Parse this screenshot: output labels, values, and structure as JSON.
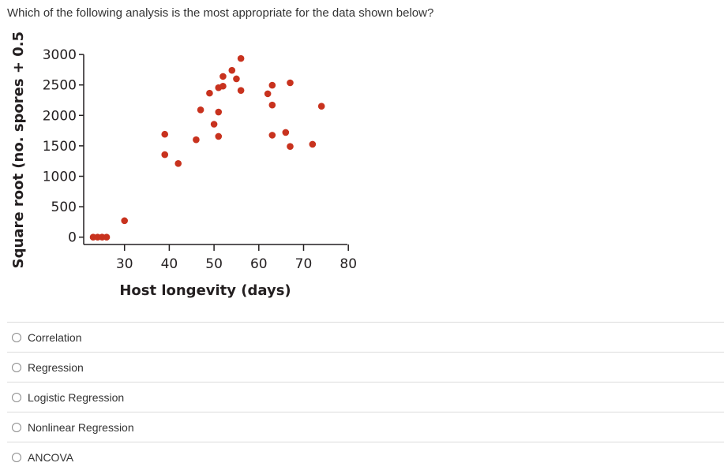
{
  "question": {
    "text": "Which of the following analysis is the most appropriate for the data shown below?"
  },
  "chart_data": {
    "type": "scatter",
    "title": "",
    "xlabel": "Host longevity (days)",
    "ylabel": "Square root (no. spores + 0.5)",
    "xlim": [
      21,
      80
    ],
    "ylim": [
      -100,
      3000
    ],
    "x_ticks": [
      30,
      40,
      50,
      60,
      70,
      80
    ],
    "x_tick_labels": [
      "30",
      "40",
      "50",
      "60",
      "70",
      "80"
    ],
    "y_ticks": [
      0,
      500,
      1000,
      1500,
      2000,
      2500,
      3000
    ],
    "y_tick_labels": [
      "0",
      "500",
      "1000",
      "1500",
      "2000",
      "2500",
      "3000"
    ],
    "grid": false,
    "legend": null,
    "marker_color": "#c8321e",
    "points": [
      {
        "x": 23,
        "y": 0
      },
      {
        "x": 24,
        "y": 0
      },
      {
        "x": 25,
        "y": 0
      },
      {
        "x": 26,
        "y": 0
      },
      {
        "x": 30,
        "y": 270
      },
      {
        "x": 39,
        "y": 1690
      },
      {
        "x": 39,
        "y": 1355
      },
      {
        "x": 42,
        "y": 1210
      },
      {
        "x": 46,
        "y": 1600
      },
      {
        "x": 47,
        "y": 2090
      },
      {
        "x": 49,
        "y": 2365
      },
      {
        "x": 50,
        "y": 1855
      },
      {
        "x": 51,
        "y": 2055
      },
      {
        "x": 51,
        "y": 1655
      },
      {
        "x": 51,
        "y": 2455
      },
      {
        "x": 52,
        "y": 2480
      },
      {
        "x": 52,
        "y": 2640
      },
      {
        "x": 54,
        "y": 2740
      },
      {
        "x": 55,
        "y": 2600
      },
      {
        "x": 56,
        "y": 2410
      },
      {
        "x": 56,
        "y": 2935
      },
      {
        "x": 62,
        "y": 2355
      },
      {
        "x": 63,
        "y": 2495
      },
      {
        "x": 63,
        "y": 2170
      },
      {
        "x": 63,
        "y": 1675
      },
      {
        "x": 66,
        "y": 1720
      },
      {
        "x": 67,
        "y": 2535
      },
      {
        "x": 67,
        "y": 1490
      },
      {
        "x": 72,
        "y": 1525
      },
      {
        "x": 74,
        "y": 2150
      }
    ]
  },
  "options": [
    {
      "label": "Correlation",
      "selected": false
    },
    {
      "label": "Regression",
      "selected": false
    },
    {
      "label": "Logistic Regression",
      "selected": false
    },
    {
      "label": "Nonlinear Regression",
      "selected": false
    },
    {
      "label": "ANCOVA",
      "selected": false
    }
  ]
}
